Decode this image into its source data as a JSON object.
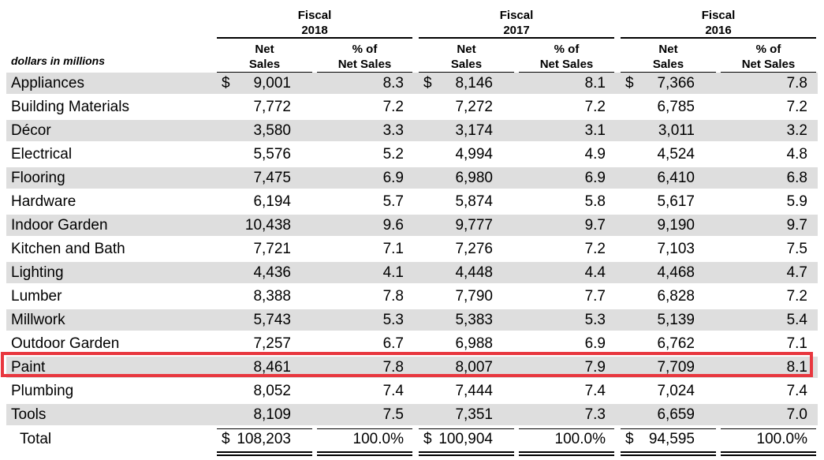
{
  "header": {
    "units_label": "dollars in millions",
    "groups": [
      {
        "title_line1": "Fiscal",
        "title_line2": "2018",
        "col1_line1": "Net",
        "col1_line2": "Sales",
        "col2_line1": "% of",
        "col2_line2": "Net Sales"
      },
      {
        "title_line1": "Fiscal",
        "title_line2": "2017",
        "col1_line1": "Net",
        "col1_line2": "Sales",
        "col2_line1": "% of",
        "col2_line2": "Net Sales"
      },
      {
        "title_line1": "Fiscal",
        "title_line2": "2016",
        "col1_line1": "Net",
        "col1_line2": "Sales",
        "col2_line1": "% of",
        "col2_line2": "Net Sales"
      }
    ]
  },
  "currency_symbol": "$",
  "rows": [
    {
      "label": "Appliances",
      "values": [
        "9,001",
        "8.3",
        "8,146",
        "8.1",
        "7,366",
        "7.8"
      ]
    },
    {
      "label": "Building Materials",
      "values": [
        "7,772",
        "7.2",
        "7,272",
        "7.2",
        "6,785",
        "7.2"
      ]
    },
    {
      "label": "Décor",
      "values": [
        "3,580",
        "3.3",
        "3,174",
        "3.1",
        "3,011",
        "3.2"
      ]
    },
    {
      "label": "Electrical",
      "values": [
        "5,576",
        "5.2",
        "4,994",
        "4.9",
        "4,524",
        "4.8"
      ]
    },
    {
      "label": "Flooring",
      "values": [
        "7,475",
        "6.9",
        "6,980",
        "6.9",
        "6,410",
        "6.8"
      ]
    },
    {
      "label": "Hardware",
      "values": [
        "6,194",
        "5.7",
        "5,874",
        "5.8",
        "5,617",
        "5.9"
      ]
    },
    {
      "label": "Indoor Garden",
      "values": [
        "10,438",
        "9.6",
        "9,777",
        "9.7",
        "9,190",
        "9.7"
      ]
    },
    {
      "label": "Kitchen and Bath",
      "values": [
        "7,721",
        "7.1",
        "7,276",
        "7.2",
        "7,103",
        "7.5"
      ]
    },
    {
      "label": "Lighting",
      "values": [
        "4,436",
        "4.1",
        "4,448",
        "4.4",
        "4,468",
        "4.7"
      ]
    },
    {
      "label": "Lumber",
      "values": [
        "8,388",
        "7.8",
        "7,790",
        "7.7",
        "6,828",
        "7.2"
      ]
    },
    {
      "label": "Millwork",
      "values": [
        "5,743",
        "5.3",
        "5,383",
        "5.3",
        "5,139",
        "5.4"
      ]
    },
    {
      "label": "Outdoor Garden",
      "values": [
        "7,257",
        "6.7",
        "6,988",
        "6.9",
        "6,762",
        "7.1"
      ]
    },
    {
      "label": "Paint",
      "values": [
        "8,461",
        "7.8",
        "8,007",
        "7.9",
        "7,709",
        "8.1"
      ]
    },
    {
      "label": "Plumbing",
      "values": [
        "8,052",
        "7.4",
        "7,444",
        "7.4",
        "7,024",
        "7.4"
      ]
    },
    {
      "label": "Tools",
      "values": [
        "8,109",
        "7.5",
        "7,351",
        "7.3",
        "6,659",
        "7.0"
      ]
    }
  ],
  "total": {
    "label": "Total",
    "values": [
      "108,203",
      "100.0%",
      "100,904",
      "100.0%",
      "94,595",
      "100.0%"
    ]
  },
  "highlighted_row": "Paint",
  "colors": {
    "row_shade": "#dedede",
    "highlight_border": "#e8373f"
  }
}
